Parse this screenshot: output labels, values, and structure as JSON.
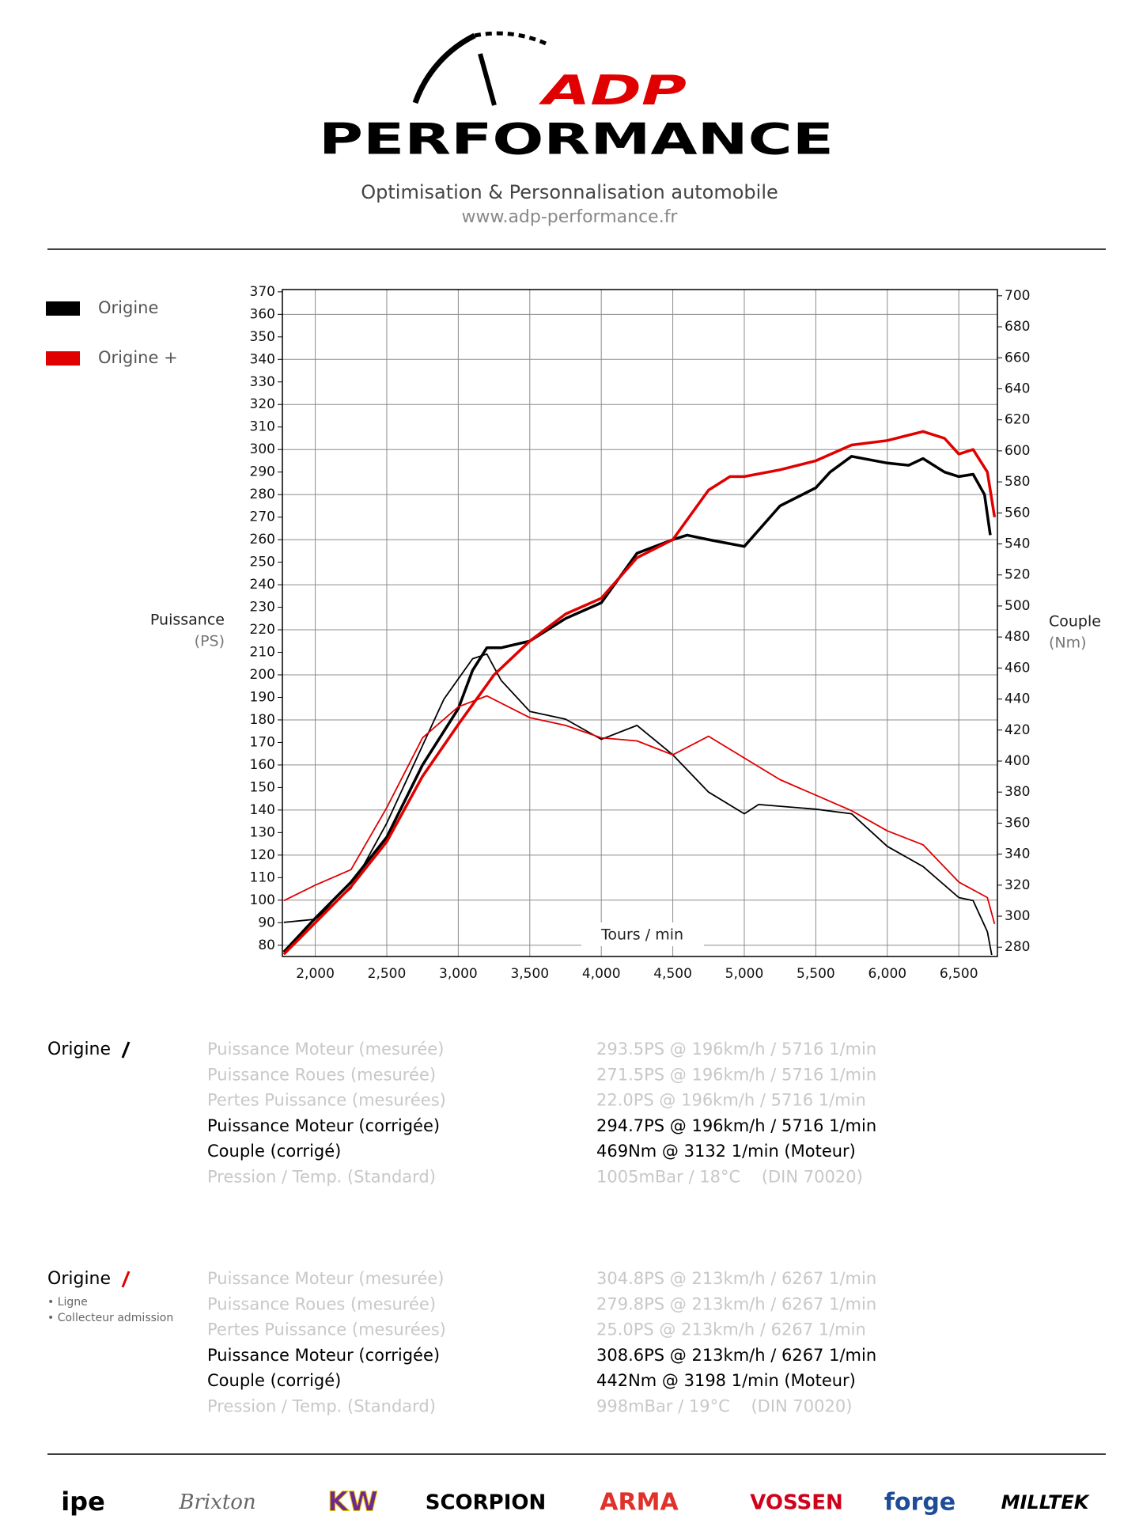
{
  "header": {
    "brand_red": "ADP",
    "brand": "PERFORMANCE",
    "tagline": "Optimisation & Personnalisation automobile",
    "url": "www.adp-performance.fr"
  },
  "chart_data": {
    "type": "line",
    "x_label": "Tours / min",
    "y_label": "Puissance",
    "y_unit": "(PS)",
    "y2_label": "Couple",
    "y2_unit": "(Nm)",
    "xlim": [
      1770,
      6770
    ],
    "xticks": [
      {
        "value": 2000,
        "label": "2,000"
      },
      {
        "value": 2500,
        "label": "2,500"
      },
      {
        "value": 3000,
        "label": "3,000"
      },
      {
        "value": 3500,
        "label": "3,500"
      },
      {
        "value": 4000,
        "label": "4,000"
      },
      {
        "value": 4500,
        "label": "4,500"
      },
      {
        "value": 5000,
        "label": "5,000"
      },
      {
        "value": 5500,
        "label": "5,500"
      },
      {
        "value": 6000,
        "label": "6,000"
      },
      {
        "value": 6500,
        "label": "6,500"
      }
    ],
    "ylim": [
      75,
      371
    ],
    "yticks": [
      80,
      90,
      100,
      110,
      120,
      130,
      140,
      150,
      160,
      170,
      180,
      190,
      200,
      210,
      220,
      230,
      240,
      250,
      260,
      270,
      280,
      290,
      300,
      310,
      320,
      330,
      340,
      350,
      360,
      370
    ],
    "y2lim": [
      274,
      704
    ],
    "y2ticks": [
      280,
      300,
      320,
      340,
      360,
      380,
      400,
      420,
      440,
      460,
      480,
      500,
      520,
      540,
      560,
      580,
      600,
      620,
      640,
      660,
      680,
      700
    ],
    "grid": true,
    "legend": "left",
    "series": [
      {
        "name": "Origine",
        "color": "#000000",
        "x": [
          1780,
          2000,
          2250,
          2500,
          2750,
          3000,
          3100,
          3200,
          3300,
          3500,
          3750,
          4000,
          4250,
          4500,
          4600,
          4750,
          5000,
          5250,
          5500,
          5600,
          5750,
          6000,
          6150,
          6250,
          6400,
          6500,
          6600,
          6680,
          6720
        ],
        "values": [
          77,
          92,
          108,
          128,
          160,
          185,
          202,
          212,
          212,
          215,
          225,
          232,
          254,
          260,
          262,
          260,
          257,
          275,
          283,
          290,
          297,
          294,
          293,
          296,
          290,
          288,
          289,
          280,
          262
        ],
        "torque_x": [
          1780,
          2000,
          2250,
          2500,
          2750,
          2900,
          3100,
          3200,
          3300,
          3500,
          3750,
          4000,
          4250,
          4500,
          4750,
          5000,
          5100,
          5500,
          5750,
          6000,
          6250,
          6500,
          6600,
          6700,
          6730
        ],
        "torque": [
          296,
          298,
          318,
          360,
          410,
          440,
          466,
          469,
          452,
          432,
          427,
          414,
          423,
          404,
          380,
          366,
          372,
          369,
          366,
          345,
          332,
          312,
          310,
          290,
          275
        ]
      },
      {
        "name": "Origine +",
        "color": "#e00000",
        "x": [
          1780,
          2000,
          2250,
          2500,
          2750,
          3000,
          3250,
          3500,
          3750,
          4000,
          4250,
          4500,
          4750,
          4900,
          5000,
          5250,
          5500,
          5750,
          6000,
          6250,
          6400,
          6500,
          6600,
          6700,
          6750
        ],
        "values": [
          76,
          90,
          106,
          126,
          155,
          178,
          200,
          215,
          227,
          234,
          252,
          260,
          282,
          288,
          288,
          291,
          295,
          302,
          304,
          308,
          305,
          298,
          300,
          290,
          270
        ],
        "torque_x": [
          1780,
          2000,
          2250,
          2500,
          2750,
          3000,
          3200,
          3500,
          3750,
          4000,
          4250,
          4500,
          4750,
          5000,
          5250,
          5500,
          5750,
          6000,
          6250,
          6500,
          6700,
          6750
        ],
        "torque": [
          310,
          320,
          330,
          370,
          415,
          435,
          442,
          428,
          423,
          415,
          413,
          404,
          416,
          402,
          388,
          378,
          368,
          355,
          346,
          322,
          312,
          295
        ]
      }
    ]
  },
  "results": [
    {
      "label": "Origine",
      "color": "#000000",
      "notes": [],
      "rows": [
        {
          "name": "Puissance Moteur (mesurée)",
          "value": "293.5PS @ 196km/h / 5716 1/min",
          "highlight": false
        },
        {
          "name": "Puissance Roues (mesurée)",
          "value": "271.5PS @ 196km/h / 5716 1/min",
          "highlight": false
        },
        {
          "name": "Pertes Puissance (mesurées)",
          "value": "22.0PS @ 196km/h / 5716 1/min",
          "highlight": false
        },
        {
          "name": "Puissance Moteur (corrigée)",
          "value": "294.7PS @ 196km/h / 5716 1/min",
          "highlight": true
        },
        {
          "name": "Couple (corrigé)",
          "value": "469Nm @ 3132 1/min (Moteur)",
          "highlight": true
        },
        {
          "name": "Pression / Temp. (Standard)",
          "value": "1005mBar / 18°C    (DIN 70020)",
          "highlight": false
        }
      ]
    },
    {
      "label": "Origine",
      "color": "#e00000",
      "notes": [
        "• Ligne",
        "• Collecteur admission"
      ],
      "rows": [
        {
          "name": "Puissance Moteur (mesurée)",
          "value": "304.8PS @ 213km/h / 6267 1/min",
          "highlight": false
        },
        {
          "name": "Puissance Roues (mesurée)",
          "value": "279.8PS @ 213km/h / 6267 1/min",
          "highlight": false
        },
        {
          "name": "Pertes Puissance (mesurées)",
          "value": "25.0PS @ 213km/h / 6267 1/min",
          "highlight": false
        },
        {
          "name": "Puissance Moteur (corrigée)",
          "value": "308.6PS @ 213km/h / 6267 1/min",
          "highlight": true
        },
        {
          "name": "Couple (corrigé)",
          "value": "442Nm @ 3198 1/min (Moteur)",
          "highlight": true
        },
        {
          "name": "Pression / Temp. (Standard)",
          "value": "998mBar / 19°C    (DIN 70020)",
          "highlight": false
        }
      ]
    }
  ],
  "footer": {
    "brands": [
      "ipe",
      "Brixton",
      "KW",
      "SCORPION",
      "ARMA",
      "VOSSEN",
      "forge",
      "MILLTEK"
    ]
  }
}
